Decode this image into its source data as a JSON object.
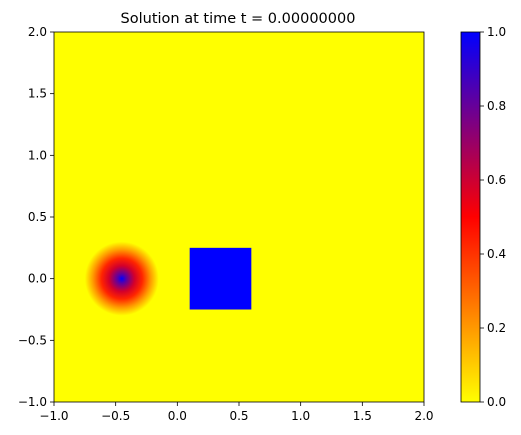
{
  "chart_data": {
    "type": "heatmap",
    "title": "Solution at time t =     0.00000000",
    "xlabel": "",
    "ylabel": "",
    "xlim": [
      -1.0,
      2.0
    ],
    "ylim": [
      -1.0,
      2.0
    ],
    "x_ticks": [
      "−1.0",
      "−0.5",
      "0.0",
      "0.5",
      "1.0",
      "1.5",
      "2.0"
    ],
    "y_ticks": [
      "−1.0",
      "−0.5",
      "0.0",
      "0.5",
      "1.0",
      "1.5",
      "2.0"
    ],
    "x_tick_values": [
      -1.0,
      -0.5,
      0.0,
      0.5,
      1.0,
      1.5,
      2.0
    ],
    "y_tick_values": [
      -1.0,
      -0.5,
      0.0,
      0.5,
      1.0,
      1.5,
      2.0
    ],
    "grid": false,
    "background_value": 0.0,
    "features": [
      {
        "shape": "gaussian-hump",
        "center": [
          -0.45,
          0.0
        ],
        "radius": 0.3,
        "peak_value": 1.0
      },
      {
        "shape": "square",
        "x_range": [
          0.1,
          0.6
        ],
        "y_range": [
          -0.25,
          0.25
        ],
        "value": 1.0
      }
    ],
    "colorbar": {
      "range": [
        0.0,
        1.0
      ],
      "ticks": [
        "0.0",
        "0.2",
        "0.4",
        "0.6",
        "0.8",
        "1.0"
      ],
      "tick_values": [
        0.0,
        0.2,
        0.4,
        0.6,
        0.8,
        1.0
      ],
      "colors": [
        {
          "value": 0.0,
          "color": "#ffff00"
        },
        {
          "value": 0.5,
          "color": "#ff0000"
        },
        {
          "value": 1.0,
          "color": "#0000ff"
        }
      ]
    }
  }
}
